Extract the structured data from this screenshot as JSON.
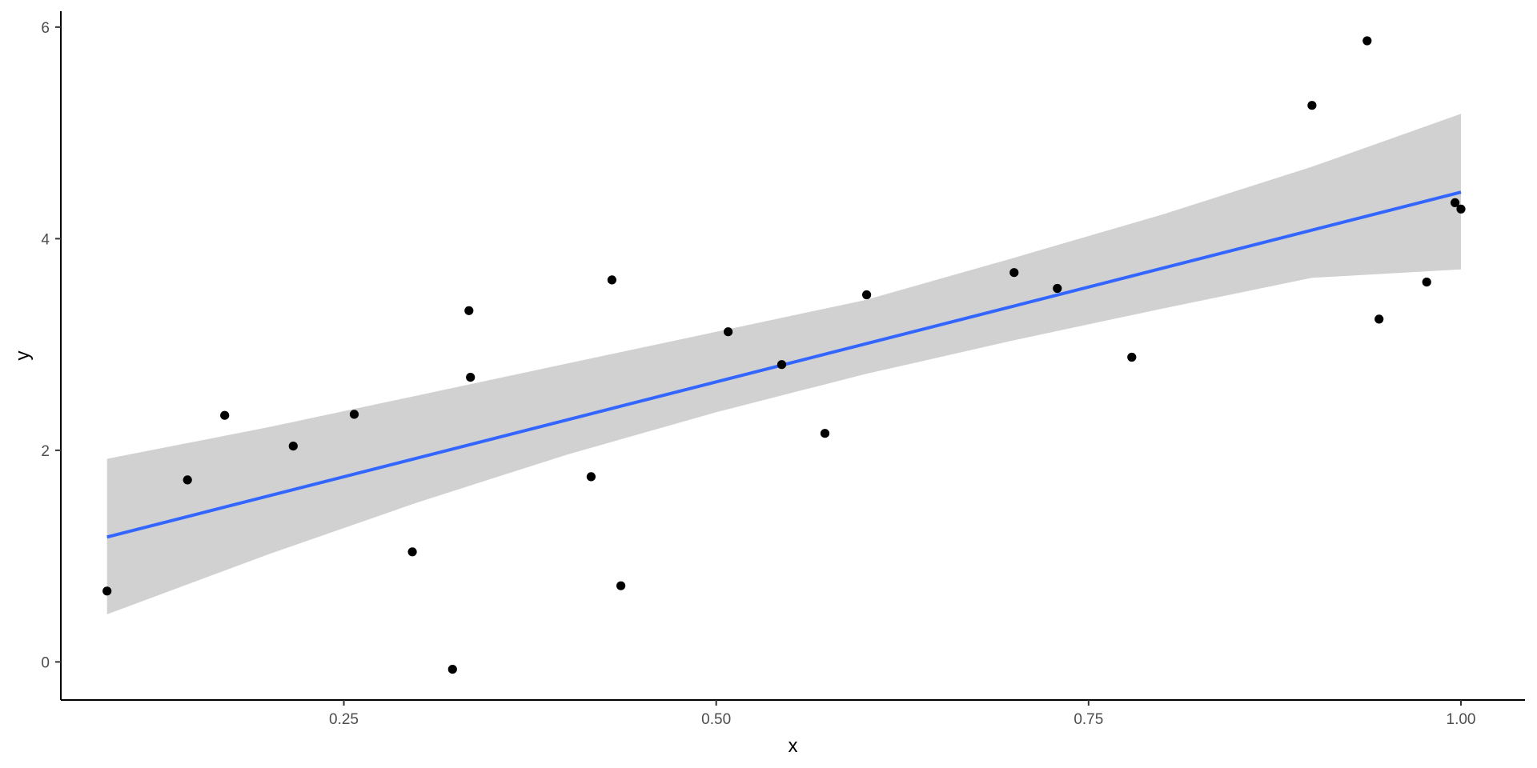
{
  "chart_data": {
    "type": "scatter",
    "title": "",
    "xlabel": "x",
    "ylabel": "y",
    "xlim": [
      0.06,
      1.043
    ],
    "ylim": [
      -0.36,
      6.15
    ],
    "x_ticks": [
      0.25,
      0.5,
      0.75,
      1.0
    ],
    "x_tick_labels": [
      "0.25",
      "0.50",
      "0.75",
      "1.00"
    ],
    "y_ticks": [
      0,
      2,
      4,
      6
    ],
    "y_tick_labels": [
      "0",
      "2",
      "4",
      "6"
    ],
    "grid": false,
    "legend": "none",
    "points": {
      "x": [
        0.091,
        0.145,
        0.17,
        0.216,
        0.257,
        0.296,
        0.323,
        0.334,
        0.335,
        0.416,
        0.43,
        0.436,
        0.508,
        0.544,
        0.573,
        0.601,
        0.7,
        0.729,
        0.779,
        0.9,
        0.937,
        0.945,
        0.977,
        0.996,
        1.0
      ],
      "y": [
        0.67,
        1.72,
        2.33,
        2.04,
        2.34,
        1.04,
        -0.07,
        3.32,
        2.69,
        1.75,
        3.61,
        0.72,
        3.12,
        2.81,
        2.16,
        3.47,
        3.68,
        3.53,
        2.88,
        5.26,
        5.87,
        3.24,
        3.59,
        4.34,
        4.28
      ]
    },
    "smooth": {
      "method": "linear fit",
      "x": [
        0.091,
        1.0
      ],
      "y": [
        1.18,
        4.44
      ],
      "confidence_band": {
        "x": [
          0.091,
          0.2,
          0.3,
          0.4,
          0.5,
          0.6,
          0.7,
          0.8,
          0.9,
          1.0
        ],
        "lower": [
          0.45,
          1.02,
          1.51,
          1.96,
          2.36,
          2.72,
          3.04,
          3.34,
          3.63,
          3.71
        ],
        "upper": [
          1.92,
          2.22,
          2.52,
          2.82,
          3.12,
          3.42,
          3.82,
          4.23,
          4.68,
          5.18
        ]
      }
    },
    "colors": {
      "points": "#000000",
      "line": "#3366FF",
      "band": "#999999",
      "axis": "#000000"
    }
  }
}
